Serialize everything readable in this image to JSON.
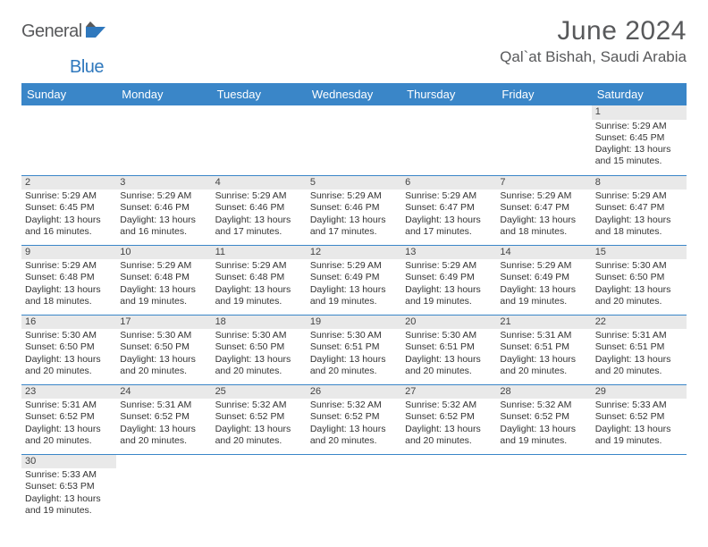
{
  "logo": {
    "general": "General",
    "blue": "Blue"
  },
  "title": "June 2024",
  "location": "Qal`at Bishah, Saudi Arabia",
  "headers": [
    "Sunday",
    "Monday",
    "Tuesday",
    "Wednesday",
    "Thursday",
    "Friday",
    "Saturday"
  ],
  "colors": {
    "header_bg": "#3a86c8",
    "header_fg": "#ffffff",
    "daynum_bg": "#e9e9e9",
    "row_border": "#3a86c8",
    "text": "#333333",
    "title": "#58595b",
    "logo_gray": "#58595b",
    "logo_blue": "#2f78bd",
    "background": "#ffffff"
  },
  "weeks": [
    [
      {
        "blank": true
      },
      {
        "blank": true
      },
      {
        "blank": true
      },
      {
        "blank": true
      },
      {
        "blank": true
      },
      {
        "blank": true
      },
      {
        "day": "1",
        "sunrise": "Sunrise: 5:29 AM",
        "sunset": "Sunset: 6:45 PM",
        "daylight1": "Daylight: 13 hours",
        "daylight2": "and 15 minutes."
      }
    ],
    [
      {
        "day": "2",
        "sunrise": "Sunrise: 5:29 AM",
        "sunset": "Sunset: 6:45 PM",
        "daylight1": "Daylight: 13 hours",
        "daylight2": "and 16 minutes."
      },
      {
        "day": "3",
        "sunrise": "Sunrise: 5:29 AM",
        "sunset": "Sunset: 6:46 PM",
        "daylight1": "Daylight: 13 hours",
        "daylight2": "and 16 minutes."
      },
      {
        "day": "4",
        "sunrise": "Sunrise: 5:29 AM",
        "sunset": "Sunset: 6:46 PM",
        "daylight1": "Daylight: 13 hours",
        "daylight2": "and 17 minutes."
      },
      {
        "day": "5",
        "sunrise": "Sunrise: 5:29 AM",
        "sunset": "Sunset: 6:46 PM",
        "daylight1": "Daylight: 13 hours",
        "daylight2": "and 17 minutes."
      },
      {
        "day": "6",
        "sunrise": "Sunrise: 5:29 AM",
        "sunset": "Sunset: 6:47 PM",
        "daylight1": "Daylight: 13 hours",
        "daylight2": "and 17 minutes."
      },
      {
        "day": "7",
        "sunrise": "Sunrise: 5:29 AM",
        "sunset": "Sunset: 6:47 PM",
        "daylight1": "Daylight: 13 hours",
        "daylight2": "and 18 minutes."
      },
      {
        "day": "8",
        "sunrise": "Sunrise: 5:29 AM",
        "sunset": "Sunset: 6:47 PM",
        "daylight1": "Daylight: 13 hours",
        "daylight2": "and 18 minutes."
      }
    ],
    [
      {
        "day": "9",
        "sunrise": "Sunrise: 5:29 AM",
        "sunset": "Sunset: 6:48 PM",
        "daylight1": "Daylight: 13 hours",
        "daylight2": "and 18 minutes."
      },
      {
        "day": "10",
        "sunrise": "Sunrise: 5:29 AM",
        "sunset": "Sunset: 6:48 PM",
        "daylight1": "Daylight: 13 hours",
        "daylight2": "and 19 minutes."
      },
      {
        "day": "11",
        "sunrise": "Sunrise: 5:29 AM",
        "sunset": "Sunset: 6:48 PM",
        "daylight1": "Daylight: 13 hours",
        "daylight2": "and 19 minutes."
      },
      {
        "day": "12",
        "sunrise": "Sunrise: 5:29 AM",
        "sunset": "Sunset: 6:49 PM",
        "daylight1": "Daylight: 13 hours",
        "daylight2": "and 19 minutes."
      },
      {
        "day": "13",
        "sunrise": "Sunrise: 5:29 AM",
        "sunset": "Sunset: 6:49 PM",
        "daylight1": "Daylight: 13 hours",
        "daylight2": "and 19 minutes."
      },
      {
        "day": "14",
        "sunrise": "Sunrise: 5:29 AM",
        "sunset": "Sunset: 6:49 PM",
        "daylight1": "Daylight: 13 hours",
        "daylight2": "and 19 minutes."
      },
      {
        "day": "15",
        "sunrise": "Sunrise: 5:30 AM",
        "sunset": "Sunset: 6:50 PM",
        "daylight1": "Daylight: 13 hours",
        "daylight2": "and 20 minutes."
      }
    ],
    [
      {
        "day": "16",
        "sunrise": "Sunrise: 5:30 AM",
        "sunset": "Sunset: 6:50 PM",
        "daylight1": "Daylight: 13 hours",
        "daylight2": "and 20 minutes."
      },
      {
        "day": "17",
        "sunrise": "Sunrise: 5:30 AM",
        "sunset": "Sunset: 6:50 PM",
        "daylight1": "Daylight: 13 hours",
        "daylight2": "and 20 minutes."
      },
      {
        "day": "18",
        "sunrise": "Sunrise: 5:30 AM",
        "sunset": "Sunset: 6:50 PM",
        "daylight1": "Daylight: 13 hours",
        "daylight2": "and 20 minutes."
      },
      {
        "day": "19",
        "sunrise": "Sunrise: 5:30 AM",
        "sunset": "Sunset: 6:51 PM",
        "daylight1": "Daylight: 13 hours",
        "daylight2": "and 20 minutes."
      },
      {
        "day": "20",
        "sunrise": "Sunrise: 5:30 AM",
        "sunset": "Sunset: 6:51 PM",
        "daylight1": "Daylight: 13 hours",
        "daylight2": "and 20 minutes."
      },
      {
        "day": "21",
        "sunrise": "Sunrise: 5:31 AM",
        "sunset": "Sunset: 6:51 PM",
        "daylight1": "Daylight: 13 hours",
        "daylight2": "and 20 minutes."
      },
      {
        "day": "22",
        "sunrise": "Sunrise: 5:31 AM",
        "sunset": "Sunset: 6:51 PM",
        "daylight1": "Daylight: 13 hours",
        "daylight2": "and 20 minutes."
      }
    ],
    [
      {
        "day": "23",
        "sunrise": "Sunrise: 5:31 AM",
        "sunset": "Sunset: 6:52 PM",
        "daylight1": "Daylight: 13 hours",
        "daylight2": "and 20 minutes."
      },
      {
        "day": "24",
        "sunrise": "Sunrise: 5:31 AM",
        "sunset": "Sunset: 6:52 PM",
        "daylight1": "Daylight: 13 hours",
        "daylight2": "and 20 minutes."
      },
      {
        "day": "25",
        "sunrise": "Sunrise: 5:32 AM",
        "sunset": "Sunset: 6:52 PM",
        "daylight1": "Daylight: 13 hours",
        "daylight2": "and 20 minutes."
      },
      {
        "day": "26",
        "sunrise": "Sunrise: 5:32 AM",
        "sunset": "Sunset: 6:52 PM",
        "daylight1": "Daylight: 13 hours",
        "daylight2": "and 20 minutes."
      },
      {
        "day": "27",
        "sunrise": "Sunrise: 5:32 AM",
        "sunset": "Sunset: 6:52 PM",
        "daylight1": "Daylight: 13 hours",
        "daylight2": "and 20 minutes."
      },
      {
        "day": "28",
        "sunrise": "Sunrise: 5:32 AM",
        "sunset": "Sunset: 6:52 PM",
        "daylight1": "Daylight: 13 hours",
        "daylight2": "and 19 minutes."
      },
      {
        "day": "29",
        "sunrise": "Sunrise: 5:33 AM",
        "sunset": "Sunset: 6:52 PM",
        "daylight1": "Daylight: 13 hours",
        "daylight2": "and 19 minutes."
      }
    ],
    [
      {
        "day": "30",
        "sunrise": "Sunrise: 5:33 AM",
        "sunset": "Sunset: 6:53 PM",
        "daylight1": "Daylight: 13 hours",
        "daylight2": "and 19 minutes."
      },
      {
        "blank": true
      },
      {
        "blank": true
      },
      {
        "blank": true
      },
      {
        "blank": true
      },
      {
        "blank": true
      },
      {
        "blank": true
      }
    ]
  ]
}
